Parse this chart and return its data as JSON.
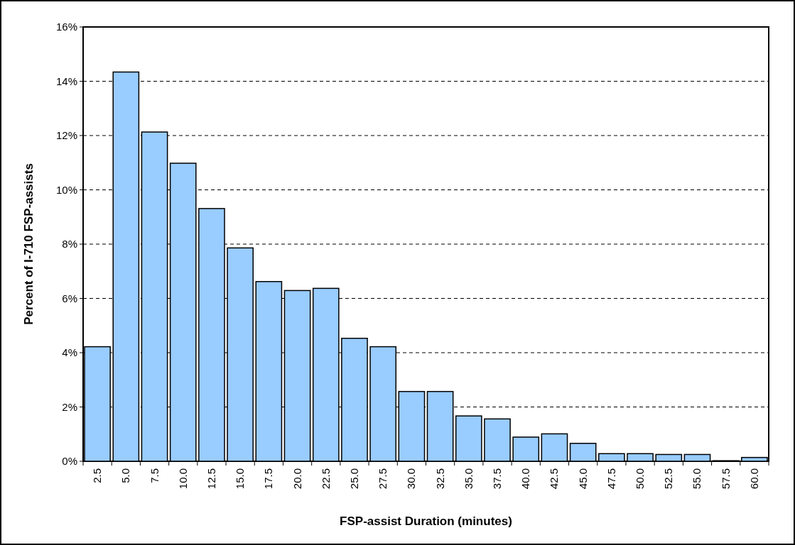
{
  "chart_data": {
    "type": "bar",
    "xlabel": "FSP-assist Duration (minutes)",
    "ylabel": "Percent of I-710 FSP-assists",
    "categories": [
      "2.5",
      "5.0",
      "7.5",
      "10.0",
      "12.5",
      "15.0",
      "17.5",
      "20.0",
      "22.5",
      "25.0",
      "27.5",
      "30.0",
      "32.5",
      "35.0",
      "37.5",
      "40.0",
      "42.5",
      "45.0",
      "47.5",
      "50.0",
      "52.5",
      "55.0",
      "57.5",
      "60.0"
    ],
    "values": [
      4.22,
      14.34,
      12.13,
      10.98,
      9.31,
      7.86,
      6.62,
      6.29,
      6.37,
      4.53,
      4.22,
      2.57,
      2.57,
      1.67,
      1.56,
      0.89,
      1.01,
      0.66,
      0.28,
      0.28,
      0.25,
      0.25,
      0.02,
      0.14
    ],
    "color": "#99ccff",
    "ylim": [
      0,
      16
    ],
    "yticks": [
      {
        "value": 0,
        "label": "0%"
      },
      {
        "value": 2,
        "label": "2%"
      },
      {
        "value": 4,
        "label": "4%"
      },
      {
        "value": 6,
        "label": "6%"
      },
      {
        "value": 8,
        "label": "8%"
      },
      {
        "value": 10,
        "label": "10%"
      },
      {
        "value": 12,
        "label": "12%"
      },
      {
        "value": 14,
        "label": "14%"
      },
      {
        "value": 16,
        "label": "16%"
      }
    ],
    "grid": "y"
  }
}
